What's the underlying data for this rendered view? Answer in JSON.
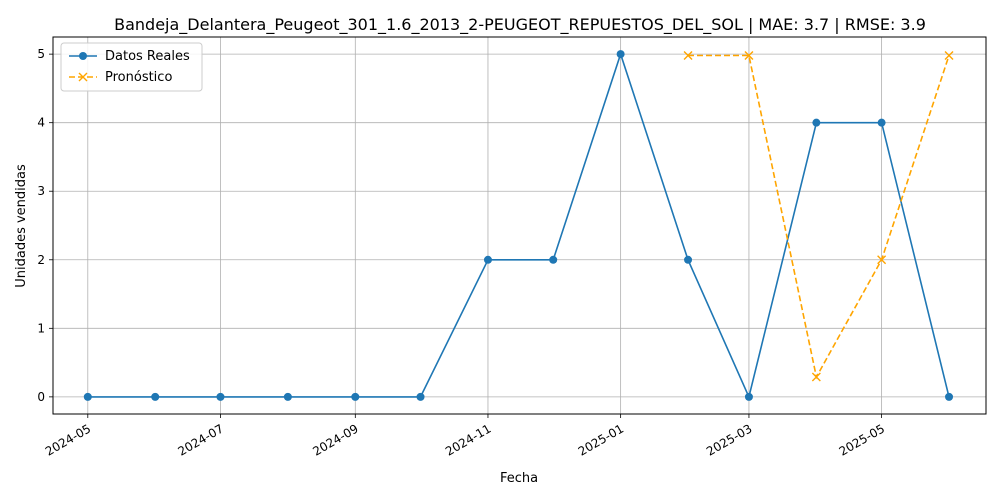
{
  "chart_data": {
    "type": "line",
    "title": "Bandeja_Delantera_Peugeot_301_1.6_2013_2-PEUGEOT_REPUESTOS_DEL_SOL | MAE: 3.7 | RMSE: 3.9",
    "xlabel": "Fecha",
    "ylabel": "Unidades vendidas",
    "grid": true,
    "legend_position": "top-left",
    "x_ticks": [
      "2024-05",
      "2024-07",
      "2024-09",
      "2024-11",
      "2025-01",
      "2025-03",
      "2025-05"
    ],
    "y_ticks": [
      0,
      1,
      2,
      3,
      4,
      5
    ],
    "ylim": [
      -0.25,
      5.25
    ],
    "xlim": [
      "2024-04-15",
      "2025-06-18"
    ],
    "series": [
      {
        "name": "Datos Reales",
        "color": "#1f77b4",
        "line_style": "solid",
        "marker": "circle",
        "x": [
          "2024-05-01",
          "2024-06-01",
          "2024-07-01",
          "2024-08-01",
          "2024-09-01",
          "2024-10-01",
          "2024-11-01",
          "2024-12-01",
          "2025-01-01",
          "2025-02-01",
          "2025-03-01",
          "2025-04-01",
          "2025-05-01",
          "2025-06-01"
        ],
        "values": [
          0,
          0,
          0,
          0,
          0,
          0,
          2,
          2,
          5,
          2,
          0,
          4,
          4,
          0
        ]
      },
      {
        "name": "Pronóstico",
        "color": "#ffa500",
        "line_style": "dashed",
        "marker": "x",
        "x": [
          "2025-02-01",
          "2025-03-01",
          "2025-04-01",
          "2025-05-01",
          "2025-06-01"
        ],
        "values": [
          4.98,
          4.98,
          0.29,
          2.0,
          4.98
        ]
      }
    ]
  }
}
